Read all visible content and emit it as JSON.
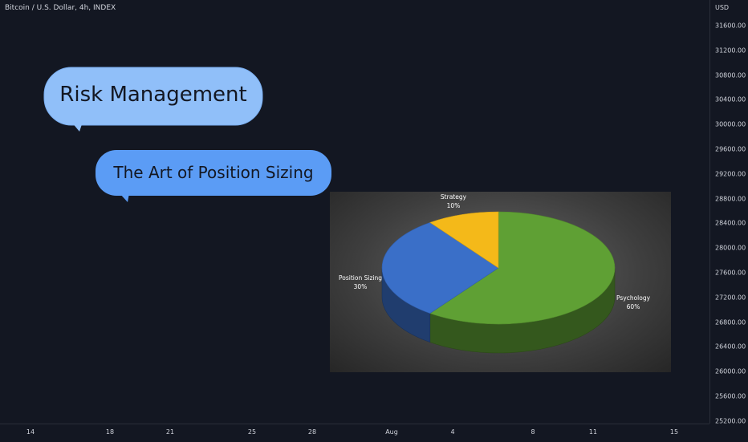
{
  "symbol_title": "Bitcoin / U.S. Dollar, 4h, INDEX",
  "price_axis": {
    "currency": "USD",
    "ticks": [
      "31600.00",
      "31200.00",
      "30800.00",
      "30400.00",
      "30000.00",
      "29600.00",
      "29200.00",
      "28800.00",
      "28400.00",
      "28000.00",
      "27600.00",
      "27200.00",
      "26800.00",
      "26400.00",
      "26000.00",
      "25600.00",
      "25200.00"
    ]
  },
  "time_axis": {
    "ticks": [
      "14",
      "18",
      "21",
      "25",
      "28",
      "Aug",
      "4",
      "8",
      "11",
      "15"
    ]
  },
  "bubbles": {
    "risk_management": "Risk Management",
    "position_sizing": "The Art of Position Sizing"
  },
  "colors": {
    "background": "#131722",
    "bubble_light": "#90bff9",
    "bubble_mid": "#5b9cf5",
    "psychology": "#5fa034",
    "position_sizing": "#3a6fc8",
    "strategy": "#f4b919"
  },
  "chart_data": {
    "type": "pie",
    "title": "",
    "legend": "none",
    "slices": [
      {
        "name": "Psychology",
        "value": 60,
        "label": "60%",
        "color": "#5fa034"
      },
      {
        "name": "Position Sizing",
        "value": 30,
        "label": "30%",
        "color": "#3a6fc8"
      },
      {
        "name": "Strategy",
        "value": 10,
        "label": "10%",
        "color": "#f4b919"
      }
    ]
  }
}
